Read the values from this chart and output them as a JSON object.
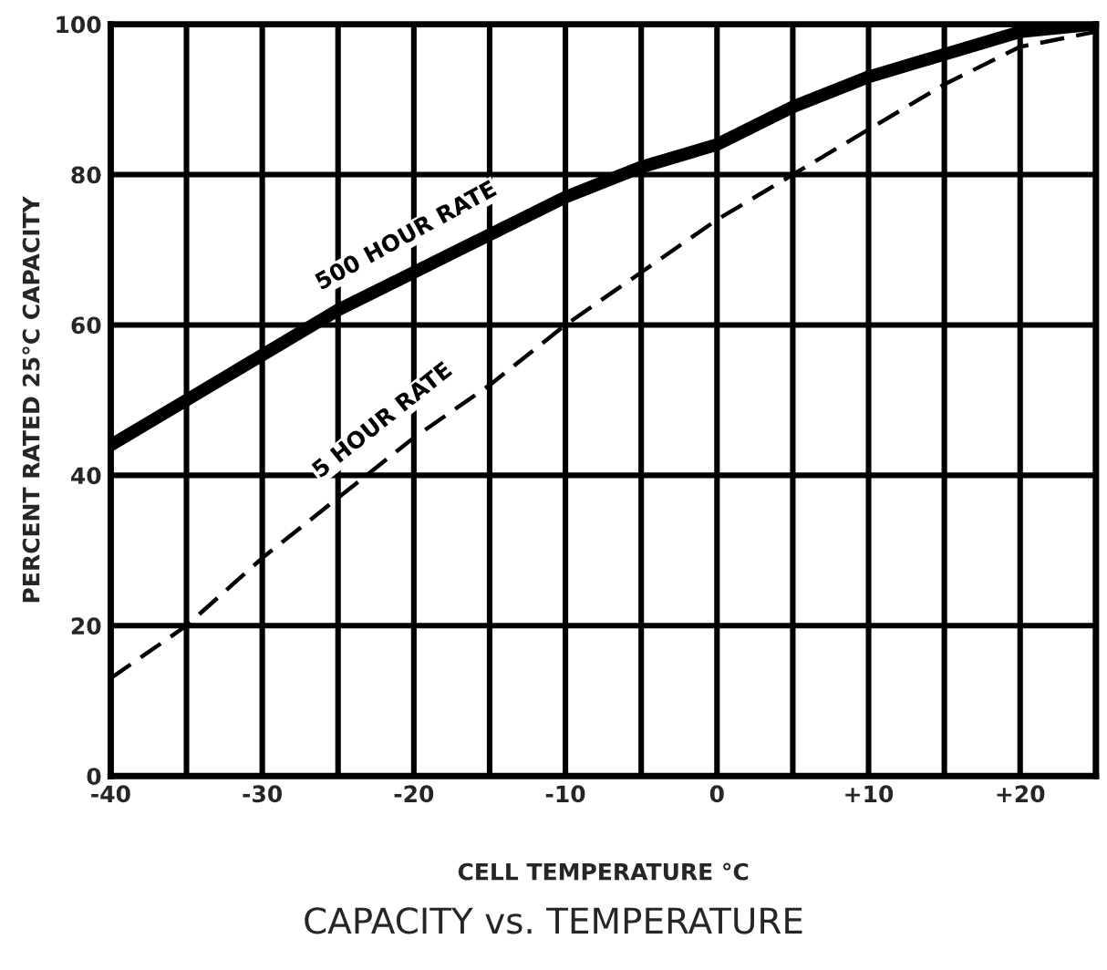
{
  "chart_data": {
    "type": "line",
    "title": "CAPACITY vs. TEMPERATURE",
    "xlabel": "CELL TEMPERATURE °C",
    "ylabel": "PERCENT RATED 25°C CAPACITY",
    "series": [
      {
        "name": "500 HOUR RATE",
        "color": "#000000",
        "line_style": "solid",
        "x": [
          -40,
          -35,
          -30,
          -25,
          -20,
          -15,
          -10,
          -5,
          0,
          5,
          10,
          15,
          20,
          25
        ],
        "values": [
          44,
          50,
          56,
          62,
          67,
          72,
          77,
          81,
          84,
          89,
          93,
          96,
          99,
          100
        ]
      },
      {
        "name": "5 HOUR RATE",
        "color": "#000000",
        "line_style": "dashed",
        "x": [
          -40,
          -35,
          -30,
          -25,
          -20,
          -15,
          -10,
          -5,
          0,
          5,
          10,
          15,
          20,
          25
        ],
        "values": [
          13,
          20,
          29,
          37,
          45,
          52,
          60,
          67,
          74,
          80,
          86,
          92,
          97,
          99
        ]
      }
    ],
    "xlim": [
      -40,
      25
    ],
    "ylim": [
      0,
      100
    ],
    "xticks": [
      {
        "value": -40,
        "label": "-40"
      },
      {
        "value": -35,
        "label": null
      },
      {
        "value": -30,
        "label": "-30"
      },
      {
        "value": -25,
        "label": null
      },
      {
        "value": -20,
        "label": "-20"
      },
      {
        "value": -15,
        "label": null
      },
      {
        "value": -10,
        "label": "-10"
      },
      {
        "value": -5,
        "label": null
      },
      0,
      {
        "value": 5,
        "label": null
      },
      {
        "value": 10,
        "label": "+10"
      },
      {
        "value": 15,
        "label": null
      },
      {
        "value": 20,
        "label": "+20"
      },
      {
        "value": 25,
        "label": null
      }
    ],
    "yticks": [
      0,
      20,
      40,
      60,
      80,
      100
    ],
    "grid": true,
    "legend": false,
    "marker": "none"
  }
}
